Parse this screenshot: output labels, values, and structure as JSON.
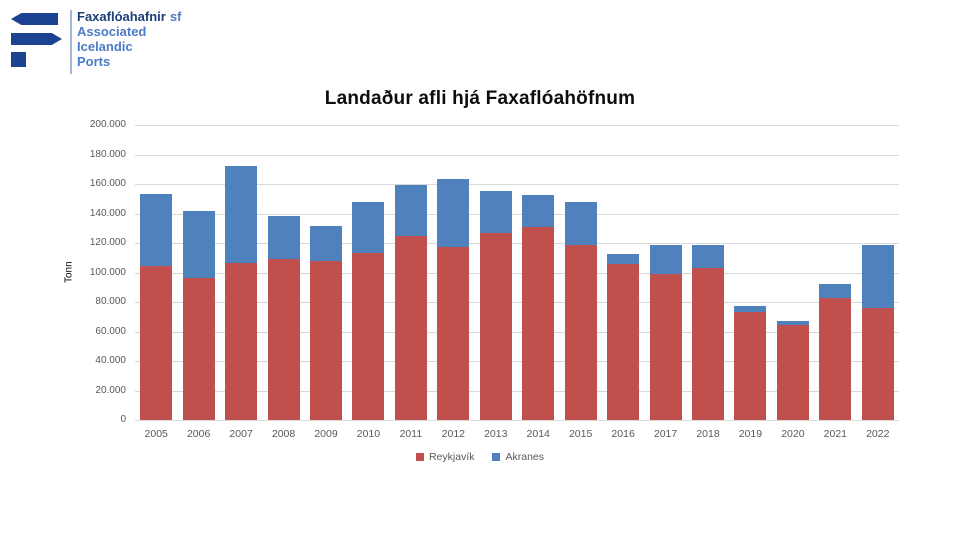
{
  "logo": {
    "brand": "Faxaflóahafnir",
    "brand_suffix": "sf",
    "subtitle_lines": [
      "Associated",
      "Icelandic",
      "Ports"
    ],
    "mark_color": "#1B4392",
    "brand_color": "#1E3C78",
    "accent_color": "#4C7CC4",
    "separator_color": "#A3B9DA"
  },
  "chart_data": {
    "type": "bar",
    "stacked": true,
    "title": "Landaður afli hjá Faxaflóahöfnum",
    "ylabel": "Tonn",
    "xlabel": "",
    "categories": [
      "2005",
      "2006",
      "2007",
      "2008",
      "2009",
      "2010",
      "2011",
      "2012",
      "2013",
      "2014",
      "2015",
      "2016",
      "2017",
      "2018",
      "2019",
      "2020",
      "2021",
      "2022"
    ],
    "series": [
      {
        "name": "Reykjavík",
        "color": "#C0504D",
        "values": [
          104500,
          96000,
          106500,
          109000,
          107500,
          113000,
          125000,
          117000,
          126500,
          131000,
          118500,
          106000,
          99000,
          103000,
          73000,
          64500,
          83000,
          76000
        ]
      },
      {
        "name": "Akranes",
        "color": "#4F81BD",
        "values": [
          49000,
          45500,
          66000,
          29500,
          24000,
          34500,
          34500,
          46500,
          28500,
          21500,
          29000,
          6500,
          19500,
          15500,
          4000,
          2500,
          9000,
          42500
        ]
      }
    ],
    "ylim": [
      0,
      200000
    ],
    "ytick_step": 20000,
    "grid": true,
    "legend_position": "bottom",
    "gridline_color": "#D9D9D9",
    "axis_text_color": "#595959"
  }
}
